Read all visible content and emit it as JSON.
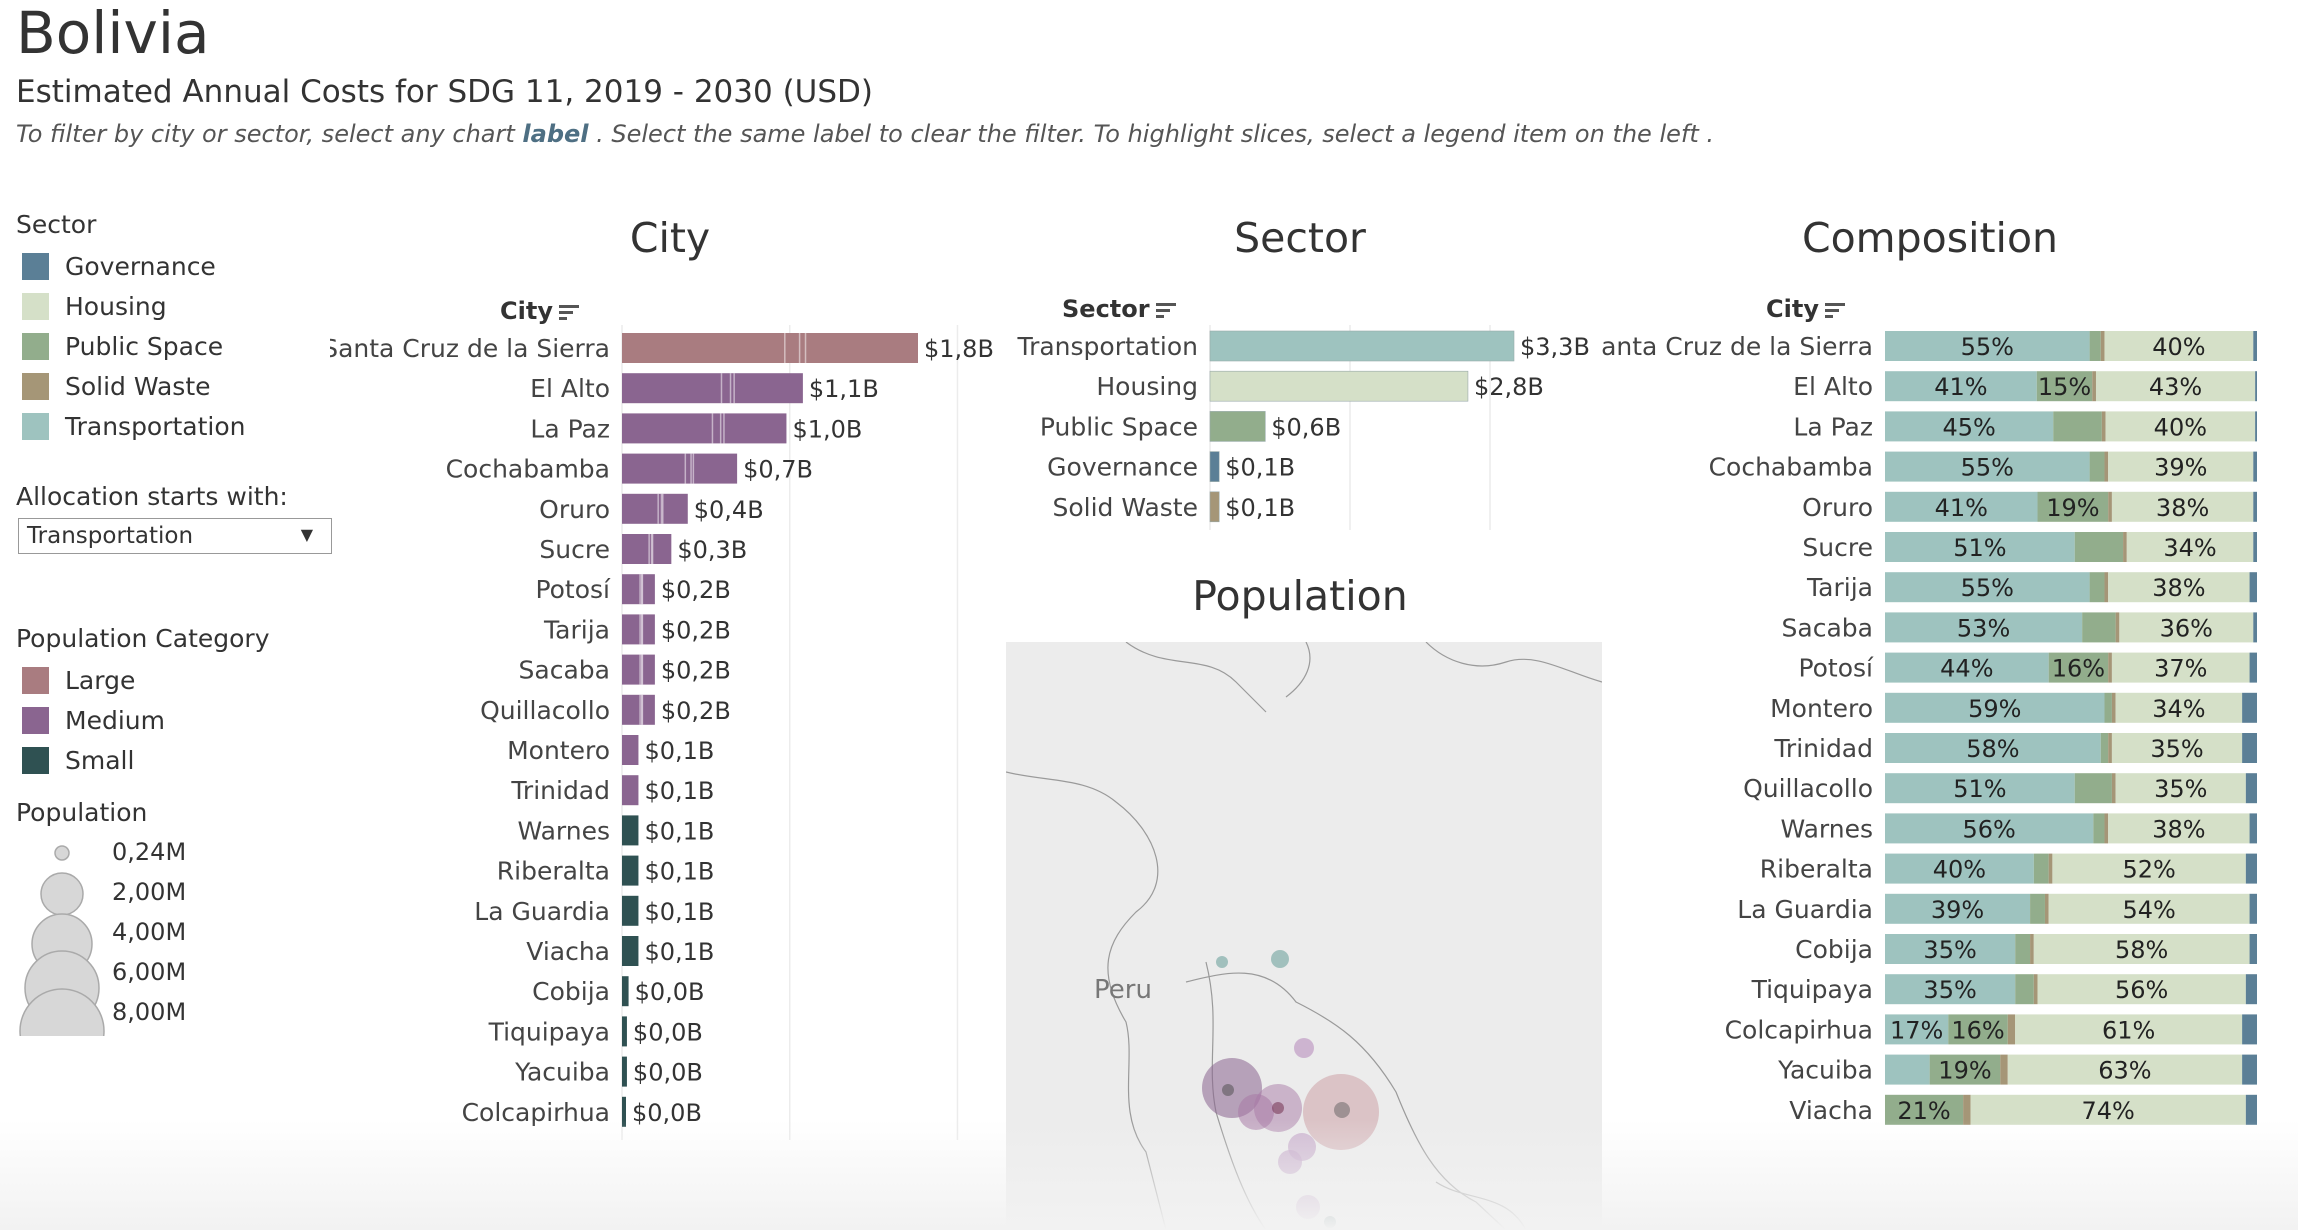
{
  "header": {
    "title": "Bolivia",
    "subtitle": "Estimated Annual Costs for SDG 11, 2019 - 2030 (USD)",
    "instructions_pre": "To filter by city or sector, select any chart ",
    "instructions_label": "label",
    "instructions_post": " . Select the same label to clear the filter. To highlight slices, select a legend item on the left ."
  },
  "sector_legend": {
    "title": "Sector",
    "items": [
      {
        "label": "Governance",
        "color": "#5b7f96"
      },
      {
        "label": "Housing",
        "color": "#d5e0c8"
      },
      {
        "label": "Public Space",
        "color": "#92ad8c"
      },
      {
        "label": "Solid Waste",
        "color": "#a59677"
      },
      {
        "label": "Transportation",
        "color": "#9ec3bf"
      }
    ]
  },
  "allocation": {
    "label": "Allocation starts with:",
    "selected": "Transportation"
  },
  "population_category_legend": {
    "title": "Population Category",
    "items": [
      {
        "label": "Large",
        "color": "#a97c80"
      },
      {
        "label": "Medium",
        "color": "#8a6590"
      },
      {
        "label": "Small",
        "color": "#2f5152"
      }
    ]
  },
  "population_size_legend": {
    "title": "Population",
    "items": [
      "0,24M",
      "2,00M",
      "4,00M",
      "6,00M",
      "8,00M"
    ]
  },
  "map": {
    "title": "Population",
    "country_label": "Peru"
  },
  "chart_data": [
    {
      "type": "bar",
      "title": "City",
      "ylabel": "City",
      "orientation": "horizontal",
      "categories": [
        "Santa Cruz de la Sierra",
        "El Alto",
        "La Paz",
        "Cochabamba",
        "Oruro",
        "Sucre",
        "Potosí",
        "Tarija",
        "Sacaba",
        "Quillacollo",
        "Montero",
        "Trinidad",
        "Warnes",
        "Riberalta",
        "La Guardia",
        "Viacha",
        "Cobija",
        "Tiquipaya",
        "Yacuiba",
        "Colcapirhua"
      ],
      "values": [
        1.8,
        1.1,
        1.0,
        0.7,
        0.4,
        0.3,
        0.2,
        0.2,
        0.2,
        0.2,
        0.1,
        0.1,
        0.1,
        0.1,
        0.1,
        0.1,
        0.04,
        0.03,
        0.03,
        0.02
      ],
      "value_labels": [
        "$1,8B",
        "$1,1B",
        "$1,0B",
        "$0,7B",
        "$0,4B",
        "$0,3B",
        "$0,2B",
        "$0,2B",
        "$0,2B",
        "$0,2B",
        "$0,1B",
        "$0,1B",
        "$0,1B",
        "$0,1B",
        "$0,1B",
        "$0,1B",
        "$0,0B",
        "$0,0B",
        "$0,0B",
        "$0,0B"
      ],
      "population_category": [
        "Large",
        "Medium",
        "Medium",
        "Medium",
        "Medium",
        "Medium",
        "Medium",
        "Medium",
        "Medium",
        "Medium",
        "Medium",
        "Medium",
        "Small",
        "Small",
        "Small",
        "Small",
        "Small",
        "Small",
        "Small",
        "Small"
      ],
      "units": "USD billions"
    },
    {
      "type": "bar",
      "title": "Sector",
      "ylabel": "Sector",
      "orientation": "horizontal",
      "categories": [
        "Transportation",
        "Housing",
        "Public Space",
        "Governance",
        "Solid Waste"
      ],
      "values": [
        3.3,
        2.8,
        0.6,
        0.1,
        0.1
      ],
      "value_labels": [
        "$3,3B",
        "$2,8B",
        "$0,6B",
        "$0,1B",
        "$0,1B"
      ],
      "colors": [
        "#9ec3bf",
        "#d5e0c8",
        "#92ad8c",
        "#5b7f96",
        "#a59677"
      ],
      "units": "USD billions"
    },
    {
      "type": "bar",
      "title": "Composition",
      "ylabel": "City",
      "orientation": "horizontal",
      "stacked": "percent",
      "series_order": [
        "Transportation",
        "Public Space",
        "Solid Waste",
        "Housing",
        "Governance"
      ],
      "categories": [
        "Santa Cruz de la Sierra",
        "El Alto",
        "La Paz",
        "Cochabamba",
        "Oruro",
        "Sucre",
        "Tarija",
        "Sacaba",
        "Potosí",
        "Montero",
        "Trinidad",
        "Quillacollo",
        "Warnes",
        "Riberalta",
        "La Guardia",
        "Cobija",
        "Tiquipaya",
        "Colcapirhua",
        "Yacuiba",
        "Viacha"
      ],
      "rows": [
        {
          "segments": [
            55,
            3,
            1,
            40,
            1
          ],
          "labels": [
            "55%",
            "",
            "",
            "40%",
            ""
          ]
        },
        {
          "segments": [
            41,
            15,
            1,
            43,
            0.5
          ],
          "labels": [
            "41%",
            "15%",
            "",
            "43%",
            ""
          ]
        },
        {
          "segments": [
            45,
            13,
            1,
            40,
            0.5
          ],
          "labels": [
            "45%",
            "",
            "",
            "40%",
            ""
          ]
        },
        {
          "segments": [
            55,
            4,
            1,
            39,
            1
          ],
          "labels": [
            "55%",
            "",
            "",
            "39%",
            ""
          ]
        },
        {
          "segments": [
            41,
            19,
            1,
            38,
            1
          ],
          "labels": [
            "41%",
            "19%",
            "",
            "38%",
            ""
          ]
        },
        {
          "segments": [
            51,
            13,
            1,
            34,
            1
          ],
          "labels": [
            "51%",
            "",
            "",
            "34%",
            ""
          ]
        },
        {
          "segments": [
            55,
            4,
            1,
            38,
            2
          ],
          "labels": [
            "55%",
            "",
            "",
            "38%",
            ""
          ]
        },
        {
          "segments": [
            53,
            9,
            1,
            36,
            1
          ],
          "labels": [
            "53%",
            "",
            "",
            "36%",
            ""
          ]
        },
        {
          "segments": [
            44,
            16,
            1,
            37,
            2
          ],
          "labels": [
            "44%",
            "16%",
            "",
            "37%",
            ""
          ]
        },
        {
          "segments": [
            59,
            2,
            1,
            34,
            4
          ],
          "labels": [
            "59%",
            "",
            "",
            "34%",
            ""
          ]
        },
        {
          "segments": [
            58,
            2,
            1,
            35,
            4
          ],
          "labels": [
            "58%",
            "",
            "",
            "35%",
            ""
          ]
        },
        {
          "segments": [
            51,
            10,
            1,
            35,
            3
          ],
          "labels": [
            "51%",
            "",
            "",
            "35%",
            ""
          ]
        },
        {
          "segments": [
            56,
            3,
            1,
            38,
            2
          ],
          "labels": [
            "56%",
            "",
            "",
            "38%",
            ""
          ]
        },
        {
          "segments": [
            40,
            4,
            1,
            52,
            3
          ],
          "labels": [
            "40%",
            "",
            "",
            "52%",
            ""
          ]
        },
        {
          "segments": [
            39,
            4,
            1,
            54,
            2
          ],
          "labels": [
            "39%",
            "",
            "",
            "54%",
            ""
          ]
        },
        {
          "segments": [
            35,
            4,
            1,
            58,
            2
          ],
          "labels": [
            "35%",
            "",
            "",
            "58%",
            ""
          ]
        },
        {
          "segments": [
            35,
            5,
            1,
            56,
            3
          ],
          "labels": [
            "35%",
            "",
            "",
            "56%",
            ""
          ]
        },
        {
          "segments": [
            17,
            16,
            2,
            61,
            4
          ],
          "labels": [
            "17%",
            "16%",
            "",
            "61%",
            ""
          ]
        },
        {
          "segments": [
            12,
            19,
            2,
            63,
            4
          ],
          "labels": [
            "",
            "19%",
            "",
            "63%",
            ""
          ]
        },
        {
          "segments": [
            0,
            21,
            2,
            74,
            3
          ],
          "labels": [
            "",
            "21%",
            "",
            "74%",
            ""
          ]
        }
      ],
      "xlim": [
        0,
        100
      ]
    }
  ]
}
